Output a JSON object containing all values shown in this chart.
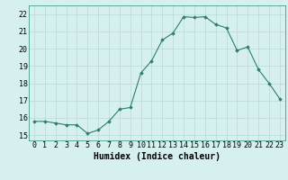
{
  "x": [
    0,
    1,
    2,
    3,
    4,
    5,
    6,
    7,
    8,
    9,
    10,
    11,
    12,
    13,
    14,
    15,
    16,
    17,
    18,
    19,
    20,
    21,
    22,
    23
  ],
  "y": [
    15.8,
    15.8,
    15.7,
    15.6,
    15.6,
    15.1,
    15.3,
    15.8,
    16.5,
    16.6,
    18.6,
    19.3,
    20.5,
    20.9,
    21.85,
    21.8,
    21.85,
    21.4,
    21.2,
    19.9,
    20.1,
    18.8,
    18.0,
    17.1
  ],
  "line_color": "#2e7d6e",
  "marker_color": "#2e7d6e",
  "bg_color": "#d6f0ef",
  "grid_color": "#b8d8d4",
  "xlabel": "Humidex (Indice chaleur)",
  "xlabel_fontsize": 7,
  "ytick_labels": [
    "15",
    "16",
    "17",
    "18",
    "19",
    "20",
    "21",
    "22"
  ],
  "ytick_values": [
    15,
    16,
    17,
    18,
    19,
    20,
    21,
    22
  ],
  "xlim": [
    -0.5,
    23.5
  ],
  "ylim": [
    14.7,
    22.5
  ],
  "tick_fontsize": 6.0
}
